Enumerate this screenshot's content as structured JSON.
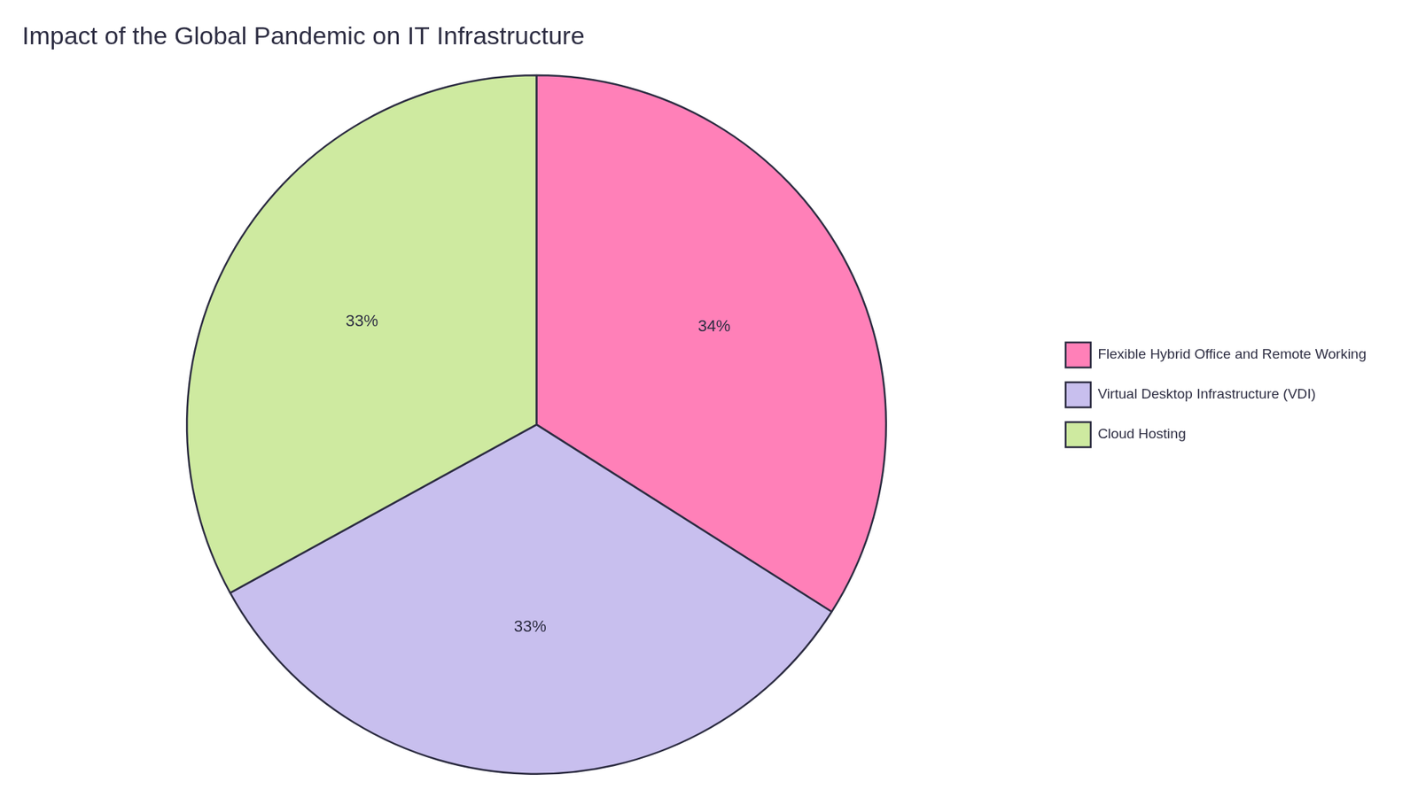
{
  "chart_data": {
    "type": "pie",
    "title": "Impact of the Global Pandemic on IT Infrastructure",
    "categories": [
      "Flexible Hybrid Office and Remote Working",
      "Virtual Desktop Infrastructure (VDI)",
      "Cloud Hosting"
    ],
    "values": [
      34,
      33,
      33
    ],
    "value_labels": [
      "34%",
      "33%",
      "33%"
    ],
    "colors": [
      "#FF80B8",
      "#C8BFEE",
      "#CEEAA0"
    ],
    "data_labels": true,
    "legend": "right"
  }
}
